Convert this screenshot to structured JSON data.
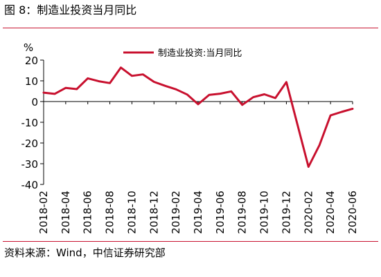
{
  "figure": {
    "title": "图 8：制造业投资当月同比",
    "source": "资料来源：Wind，中信证券研究部"
  },
  "colors": {
    "accent": "#c8102e",
    "series": "#c8102e"
  },
  "chart_data": {
    "type": "line",
    "title": "",
    "xlabel": "",
    "ylabel": "%",
    "ylim": [
      -40,
      20
    ],
    "yticks": [
      20,
      10,
      0,
      -10,
      -20,
      -30,
      -40
    ],
    "grid": false,
    "legend_position": "top-center",
    "x_tick_labels": [
      "2018-02",
      "2018-04",
      "2018-06",
      "2018-08",
      "2018-10",
      "2018-12",
      "2019-02",
      "2019-04",
      "2019-06",
      "2019-08",
      "2019-10",
      "2019-12",
      "2020-02",
      "2020-04",
      "2020-06"
    ],
    "x": [
      "2018-02",
      "2018-03",
      "2018-04",
      "2018-05",
      "2018-06",
      "2018-07",
      "2018-08",
      "2018-09",
      "2018-10",
      "2018-11",
      "2018-12",
      "2019-01",
      "2019-02",
      "2019-03",
      "2019-04",
      "2019-05",
      "2019-06",
      "2019-07",
      "2019-08",
      "2019-09",
      "2019-10",
      "2019-11",
      "2019-12",
      "2020-01",
      "2020-02",
      "2020-03",
      "2020-04",
      "2020-05",
      "2020-06"
    ],
    "series": [
      {
        "name": "制造业投资:当月同比",
        "values": [
          4.3,
          3.7,
          6.6,
          6.0,
          11.2,
          9.8,
          8.9,
          16.4,
          12.4,
          13.1,
          9.5,
          7.6,
          5.9,
          3.4,
          -1.3,
          3.2,
          3.8,
          4.9,
          -1.6,
          2.1,
          3.5,
          1.7,
          9.4,
          null,
          -31.5,
          -21.0,
          -6.7,
          -5.0,
          -3.5
        ]
      }
    ]
  }
}
